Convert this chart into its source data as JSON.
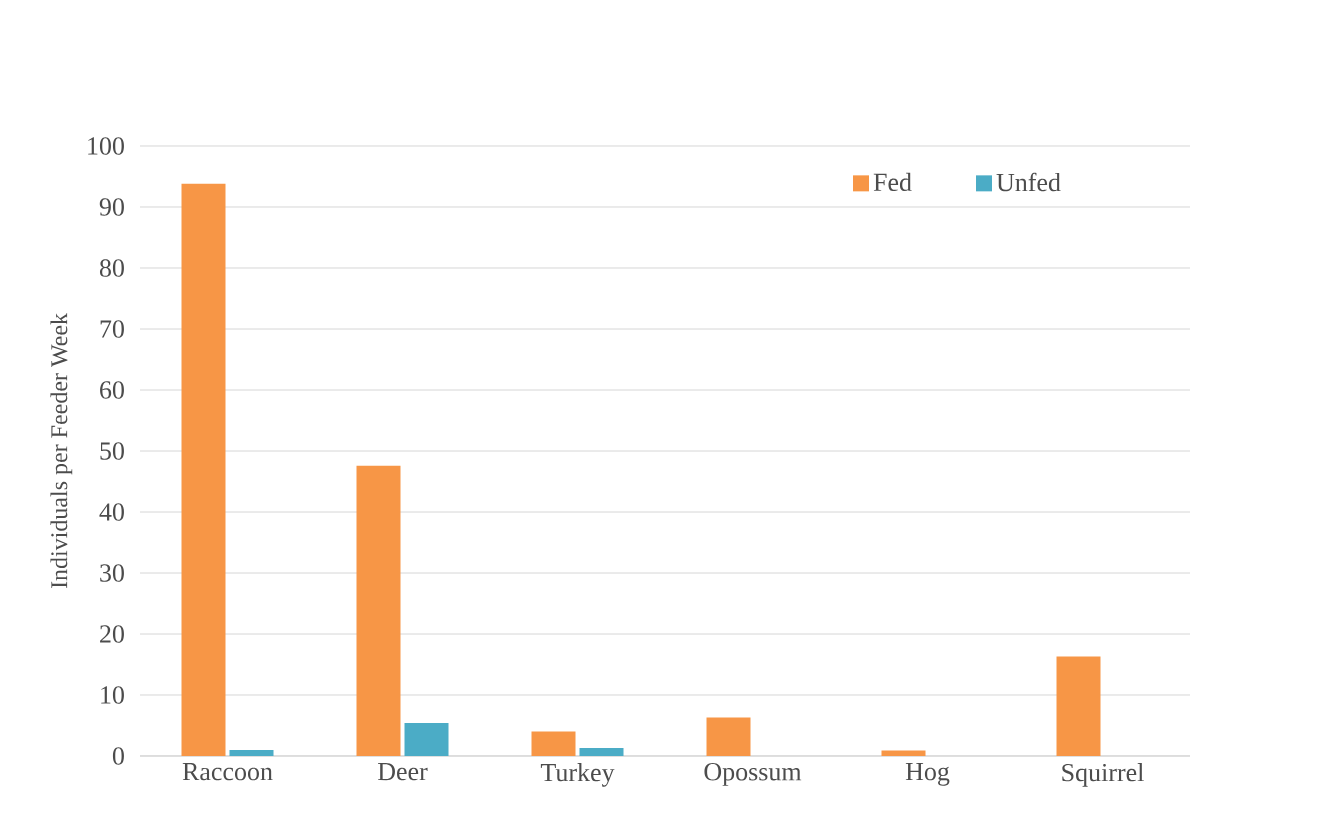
{
  "chart_data": {
    "type": "bar",
    "ylabel": "Individuals per Feeder Week",
    "categories": [
      "Raccoon",
      "Deer",
      "Turkey",
      "Opossum",
      "Hog",
      "Squirrel"
    ],
    "series": [
      {
        "name": "Fed",
        "color": "#f79646",
        "values": [
          93.8,
          47.6,
          4.0,
          6.3,
          0.9,
          16.3
        ]
      },
      {
        "name": "Unfed",
        "color": "#4bacc6",
        "values": [
          1.0,
          5.4,
          1.3,
          0,
          0,
          0
        ]
      }
    ],
    "ylim": [
      0,
      100
    ],
    "yticks": [
      0,
      10,
      20,
      30,
      40,
      50,
      60,
      70,
      80,
      90,
      100
    ],
    "grid": "y",
    "legend": "top right"
  }
}
